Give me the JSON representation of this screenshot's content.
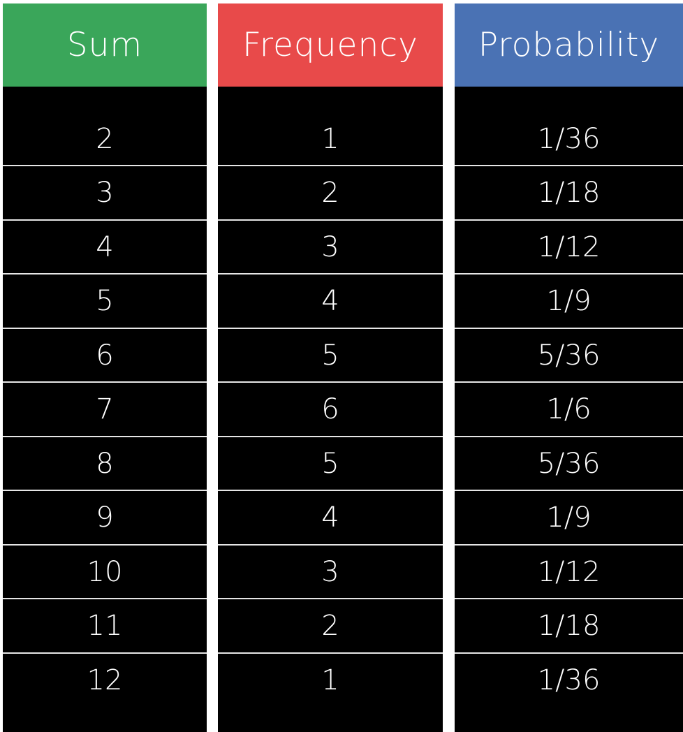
{
  "chart_data": {
    "type": "table",
    "columns": [
      {
        "label": "Sum",
        "color": "#3aa65a"
      },
      {
        "label": "Frequency",
        "color": "#e84a4a"
      },
      {
        "label": "Probability",
        "color": "#4a72b4"
      }
    ],
    "rows": [
      {
        "sum": "2",
        "frequency": "1",
        "probability": "1/36"
      },
      {
        "sum": "3",
        "frequency": "2",
        "probability": "1/18"
      },
      {
        "sum": "4",
        "frequency": "3",
        "probability": "1/12"
      },
      {
        "sum": "5",
        "frequency": "4",
        "probability": "1/9"
      },
      {
        "sum": "6",
        "frequency": "5",
        "probability": "5/36"
      },
      {
        "sum": "7",
        "frequency": "6",
        "probability": "1/6"
      },
      {
        "sum": "8",
        "frequency": "5",
        "probability": "5/36"
      },
      {
        "sum": "9",
        "frequency": "4",
        "probability": "1/9"
      },
      {
        "sum": "10",
        "frequency": "3",
        "probability": "1/12"
      },
      {
        "sum": "11",
        "frequency": "2",
        "probability": "1/18"
      },
      {
        "sum": "12",
        "frequency": "1",
        "probability": "1/36"
      }
    ]
  }
}
